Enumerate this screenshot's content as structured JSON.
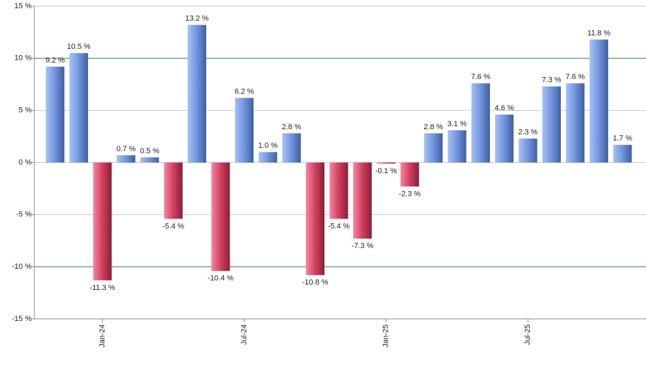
{
  "chart_data": {
    "type": "bar",
    "categories": [
      null,
      null,
      "Jan-24",
      null,
      null,
      null,
      null,
      null,
      "Jul-24",
      null,
      null,
      null,
      null,
      null,
      "Jan-25",
      null,
      null,
      null,
      null,
      null,
      "Jul-25",
      null,
      null,
      null,
      null
    ],
    "values": [
      9.2,
      10.5,
      -11.3,
      0.7,
      0.5,
      -5.4,
      13.2,
      -10.4,
      6.2,
      1.0,
      2.8,
      -10.8,
      -5.4,
      -7.3,
      -0.1,
      -2.3,
      2.8,
      3.1,
      7.6,
      4.6,
      2.3,
      7.3,
      7.6,
      11.8,
      1.7
    ],
    "value_labels": [
      "9.2 %",
      "10.5 %",
      "-11.3 %",
      "0.7 %",
      "0.5 %",
      "-5.4 %",
      "13.2 %",
      "-10.4 %",
      "6.2 %",
      "1.0 %",
      "2.8 %",
      "-10.8 %",
      "-5.4 %",
      "-7.3 %",
      "-0.1 %",
      "-2.3 %",
      "2.8 %",
      "3.1 %",
      "7.6 %",
      "4.6 %",
      "2.3 %",
      "7.3 %",
      "7.6 %",
      "11.8 %",
      "1.7 %"
    ],
    "positive_color": "#6f94e0",
    "negative_color": "#d23f5f",
    "ylim": [
      -15,
      15
    ],
    "yticks": [
      {
        "value": -15,
        "label": "-15 %"
      },
      {
        "value": -10,
        "label": "-10 %"
      },
      {
        "value": -5,
        "label": "-5 %"
      },
      {
        "value": 0,
        "label": "0 %"
      },
      {
        "value": 5,
        "label": "5 %"
      },
      {
        "value": 10,
        "label": "10 %"
      },
      {
        "value": 15,
        "label": "15 %"
      }
    ],
    "grid": true
  }
}
